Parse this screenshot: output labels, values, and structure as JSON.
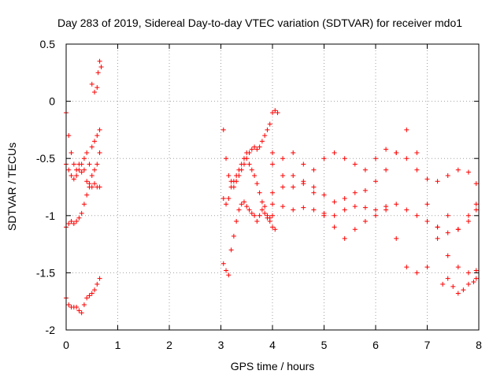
{
  "chart_data": {
    "type": "scatter",
    "title": "Day 283 of 2019, Sidereal Day-to-day VTEC variation (SDTVAR) for receiver mdo1",
    "xlabel": "GPS time / hours",
    "ylabel": "SDTVAR / TECUs",
    "xlim": [
      0,
      8
    ],
    "ylim": [
      -2,
      0.5
    ],
    "xticks": [
      "0",
      "1",
      "2",
      "3",
      "4",
      "5",
      "6",
      "7",
      "8"
    ],
    "yticks": [
      "0.5",
      "0",
      "-0.5",
      "-1",
      "-1.5",
      "-2"
    ],
    "grid": true,
    "marker": "+",
    "series_color": "#ff0000",
    "series": [
      {
        "name": "s1",
        "x": [
          0.0,
          0.05,
          0.1,
          0.15,
          0.2,
          0.25,
          0.3,
          0.35,
          0.4,
          0.45,
          0.5,
          0.55,
          0.6,
          0.65
        ],
        "y": [
          -0.1,
          -0.3,
          -0.45,
          -0.55,
          -0.6,
          -0.55,
          -0.55,
          -0.5,
          -0.45,
          -0.55,
          -0.4,
          -0.35,
          -0.3,
          -0.25
        ]
      },
      {
        "name": "s2",
        "x": [
          0.0,
          0.05,
          0.1,
          0.15,
          0.2,
          0.25,
          0.3,
          0.35,
          0.4,
          0.45,
          0.5,
          0.55,
          0.6,
          0.65
        ],
        "y": [
          -0.55,
          -0.6,
          -0.65,
          -0.68,
          -0.65,
          -0.6,
          -0.62,
          -0.6,
          -0.7,
          -0.72,
          -0.75,
          -0.72,
          -0.75,
          -0.75
        ]
      },
      {
        "name": "s3",
        "x": [
          0.0,
          0.05,
          0.1,
          0.15,
          0.2,
          0.25,
          0.3,
          0.35,
          0.4,
          0.45,
          0.5,
          0.55,
          0.6,
          0.65
        ],
        "y": [
          -1.1,
          -1.07,
          -1.05,
          -1.07,
          -1.05,
          -1.02,
          -0.98,
          -0.9,
          -0.82,
          -0.75,
          -0.65,
          -0.6,
          -0.55,
          -0.45
        ]
      },
      {
        "name": "s4",
        "x": [
          0.0,
          0.05,
          0.1,
          0.15,
          0.2,
          0.25,
          0.3,
          0.35,
          0.4,
          0.45,
          0.5,
          0.55,
          0.6,
          0.65
        ],
        "y": [
          -1.72,
          -1.78,
          -1.8,
          -1.8,
          -1.8,
          -1.83,
          -1.85,
          -1.78,
          -1.72,
          -1.7,
          -1.68,
          -1.65,
          -1.6,
          -1.55
        ]
      },
      {
        "name": "s5",
        "x": [
          0.5,
          0.55,
          0.6,
          0.62,
          0.65,
          0.68
        ],
        "y": [
          0.15,
          0.08,
          0.12,
          0.25,
          0.35,
          0.3
        ]
      },
      {
        "name": "s6",
        "x": [
          3.05,
          3.1,
          3.15,
          3.2,
          3.25,
          3.3,
          3.35,
          3.4,
          3.45,
          3.5,
          3.55,
          3.6,
          3.65,
          3.7,
          3.75,
          3.8,
          3.85,
          3.9,
          3.95,
          4.0,
          4.05,
          4.1
        ],
        "y": [
          -0.25,
          -0.5,
          -0.65,
          -0.7,
          -0.75,
          -0.7,
          -0.65,
          -0.6,
          -0.55,
          -0.5,
          -0.45,
          -0.42,
          -0.4,
          -0.42,
          -0.4,
          -0.35,
          -0.3,
          -0.25,
          -0.2,
          -0.1,
          -0.08,
          -0.1
        ]
      },
      {
        "name": "s7",
        "x": [
          3.05,
          3.1,
          3.15,
          3.2,
          3.25,
          3.3,
          3.35,
          3.4,
          3.45,
          3.5,
          3.55,
          3.6,
          3.65,
          3.7,
          3.75,
          3.8,
          3.85,
          3.9,
          3.95,
          4.0
        ],
        "y": [
          -0.85,
          -0.9,
          -0.85,
          -0.75,
          -0.7,
          -0.65,
          -0.6,
          -0.55,
          -0.5,
          -0.45,
          -0.55,
          -0.6,
          -0.65,
          -0.72,
          -0.8,
          -0.88,
          -0.92,
          -1.0,
          -1.02,
          -1.0
        ]
      },
      {
        "name": "s8",
        "x": [
          3.05,
          3.1,
          3.15,
          3.2,
          3.25,
          3.3,
          3.35,
          3.4,
          3.45,
          3.5,
          3.55,
          3.6,
          3.65,
          3.7,
          3.75,
          3.8,
          3.85,
          3.9,
          3.95,
          4.0,
          4.05
        ],
        "y": [
          -1.42,
          -1.48,
          -1.52,
          -1.3,
          -1.18,
          -1.05,
          -0.95,
          -0.9,
          -0.88,
          -0.92,
          -0.95,
          -0.98,
          -1.0,
          -1.05,
          -1.0,
          -0.95,
          -0.98,
          -1.02,
          -1.05,
          -1.1,
          -1.12
        ]
      },
      {
        "name": "s9",
        "x": [
          4.0,
          4.2,
          4.4,
          4.6,
          4.8,
          5.0,
          5.2,
          5.4,
          5.6,
          5.8,
          6.0,
          6.2,
          6.4,
          6.6,
          6.8,
          7.0,
          7.2,
          7.4,
          7.6,
          7.8,
          7.95
        ],
        "y": [
          -0.55,
          -0.5,
          -0.45,
          -0.55,
          -0.6,
          -0.5,
          -0.45,
          -0.5,
          -0.55,
          -0.6,
          -0.5,
          -0.42,
          -0.45,
          -0.5,
          -0.6,
          -0.68,
          -0.7,
          -0.65,
          -0.6,
          -0.62,
          -0.72
        ]
      },
      {
        "name": "s10",
        "x": [
          4.0,
          4.2,
          4.4,
          4.6,
          4.8,
          5.0,
          5.2,
          5.4,
          5.6,
          5.8,
          6.0,
          6.2,
          6.4,
          6.6,
          6.8,
          7.0,
          7.2,
          7.4,
          7.6,
          7.8,
          7.95
        ],
        "y": [
          -0.8,
          -0.75,
          -0.65,
          -0.7,
          -0.75,
          -0.82,
          -0.88,
          -0.85,
          -0.8,
          -0.78,
          -0.7,
          -0.6,
          -0.45,
          -0.25,
          -0.45,
          -0.9,
          -1.1,
          -1.15,
          -1.12,
          -1.05,
          -0.95
        ]
      },
      {
        "name": "s11",
        "x": [
          4.0,
          4.2,
          4.4,
          4.6,
          4.8,
          5.0,
          5.2,
          5.4,
          5.6,
          5.8,
          6.0,
          6.2,
          6.4,
          6.6,
          6.8,
          7.0,
          7.2,
          7.4,
          7.6,
          7.8,
          7.95
        ],
        "y": [
          -0.9,
          -0.92,
          -0.95,
          -0.93,
          -0.95,
          -0.98,
          -1.0,
          -0.95,
          -0.92,
          -0.93,
          -0.95,
          -0.92,
          -0.9,
          -0.95,
          -1.0,
          -1.05,
          -1.2,
          -1.35,
          -1.45,
          -1.5,
          -1.48
        ]
      },
      {
        "name": "s12",
        "x": [
          4.0,
          4.2,
          4.4,
          4.6,
          4.8,
          5.0,
          5.2,
          5.4,
          5.6,
          5.8,
          6.0,
          6.2,
          6.4,
          6.6,
          6.8,
          7.0,
          7.2,
          7.4,
          7.6,
          7.8,
          7.95
        ],
        "y": [
          -0.45,
          -0.65,
          -0.75,
          -0.72,
          -0.8,
          -1.0,
          -1.1,
          -1.2,
          -1.12,
          -1.05,
          -1.0,
          -0.95,
          -1.2,
          -1.45,
          -1.5,
          -1.45,
          -1.1,
          -1.0,
          -1.12,
          -1.0,
          -0.9
        ]
      },
      {
        "name": "s13",
        "x": [
          7.3,
          7.4,
          7.5,
          7.6,
          7.7,
          7.8,
          7.9,
          7.95
        ],
        "y": [
          -1.6,
          -1.55,
          -1.62,
          -1.68,
          -1.65,
          -1.6,
          -1.58,
          -1.55
        ]
      }
    ]
  }
}
